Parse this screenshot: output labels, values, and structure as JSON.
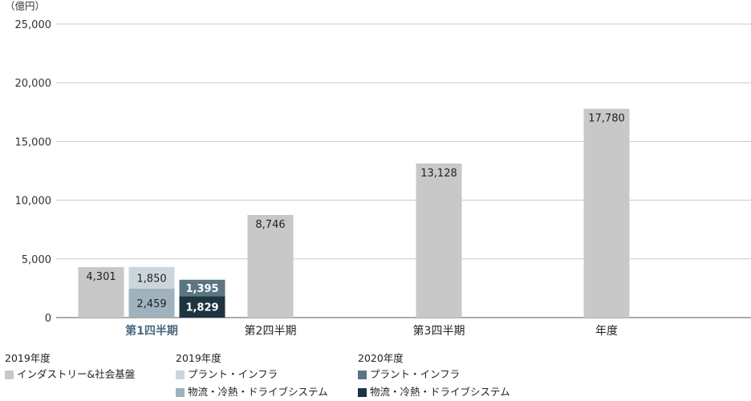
{
  "chart_data": {
    "type": "bar",
    "unit_label": "（億円）",
    "ylim": [
      0,
      25000
    ],
    "yticks": [
      "0",
      "5,000",
      "10,000",
      "15,000",
      "20,000",
      "25,000"
    ],
    "ytick_values": [
      0,
      5000,
      10000,
      15000,
      20000,
      25000
    ],
    "grid": true,
    "categories": [
      "第1四半期",
      "第2四半期",
      "第3四半期",
      "年度"
    ],
    "highlight_category_color": "#4a6a80",
    "series": [
      {
        "name": "インダストリー&社会基盤",
        "year": "2019年度",
        "stack": "2019-industry",
        "color": "#c8c8c8",
        "label_color": "#222222",
        "values": [
          4301,
          8746,
          13128,
          17780
        ],
        "labels": [
          "4,301",
          "8,746",
          "13,128",
          "17,780"
        ]
      },
      {
        "name": "物流・冷熱・ドライブシステム",
        "year": "2019年度",
        "stack": "2019-plant",
        "color": "#9fb2bd",
        "label_color": "#222222",
        "values": [
          2459,
          null,
          null,
          null
        ],
        "labels": [
          "2,459",
          "",
          "",
          ""
        ]
      },
      {
        "name": "プラント・インフラ",
        "year": "2019年度",
        "stack": "2019-plant",
        "color": "#cbd6dc",
        "label_color": "#222222",
        "values": [
          1850,
          null,
          null,
          null
        ],
        "labels": [
          "1,850",
          "",
          "",
          ""
        ]
      },
      {
        "name": "物流・冷熱・ドライブシステム",
        "year": "2020年度",
        "stack": "2020",
        "color": "#1e3440",
        "label_color": "#ffffff",
        "values": [
          1829,
          null,
          null,
          null
        ],
        "labels": [
          "1,829",
          "",
          "",
          ""
        ]
      },
      {
        "name": "プラント・インフラ",
        "year": "2020年度",
        "stack": "2020",
        "color": "#5b7582",
        "label_color": "#ffffff",
        "values": [
          1395,
          null,
          null,
          null
        ],
        "labels": [
          "1,395",
          "",
          "",
          ""
        ]
      }
    ],
    "legend": [
      {
        "header": "2019年度",
        "items": [
          {
            "label": "インダストリー&社会基盤",
            "color": "#c8c8c8"
          }
        ]
      },
      {
        "header": "2019年度",
        "items": [
          {
            "label": "プラント・インフラ",
            "color": "#cbd6dc"
          },
          {
            "label": "物流・冷熱・ドライブシステム",
            "color": "#9fb2bd"
          }
        ]
      },
      {
        "header": "2020年度",
        "items": [
          {
            "label": "プラント・インフラ",
            "color": "#5b7582"
          },
          {
            "label": "物流・冷熱・ドライブシステム",
            "color": "#1e3440"
          }
        ]
      }
    ],
    "legend_placement": "bottom-left"
  }
}
